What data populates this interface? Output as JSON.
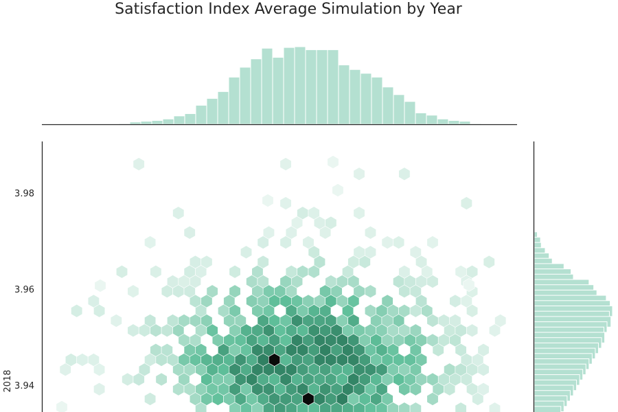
{
  "chart_data": {
    "type": "hexbin-joint",
    "title": "Satisfaction Index Average Simulation by Year",
    "xlabel": "",
    "ylabel": "2018",
    "ylim": [
      3.933,
      3.99
    ],
    "yticks": [
      3.94,
      3.96,
      3.98
    ],
    "colors": {
      "hist_fill": "#b4e0d1",
      "hist_edge": "#ffffff",
      "hex_light": "#eaf6f1",
      "hex_mid": "#5fbf9a",
      "hex_dark": "#2b7a5c",
      "hex_max": "#0a0a0a",
      "axis": "#262626"
    },
    "top_histogram": {
      "note_bins": "relative counts, left to right",
      "counts": [
        1,
        3,
        4,
        5,
        7,
        11,
        14,
        25,
        34,
        43,
        62,
        75,
        86,
        100,
        88,
        101,
        102,
        98,
        98,
        98,
        78,
        72,
        67,
        62,
        49,
        39,
        30,
        15,
        12,
        7,
        5,
        4,
        1
      ]
    },
    "right_histogram": {
      "y_bins": [
        3.9708,
        3.9697,
        3.9686,
        3.9675,
        3.9664,
        3.9653,
        3.9642,
        3.9631,
        3.962,
        3.9609,
        3.9598,
        3.9587,
        3.9576,
        3.9565,
        3.9554,
        3.9543,
        3.9532,
        3.9521,
        3.951,
        3.9499,
        3.9488,
        3.9477,
        3.9466,
        3.9455,
        3.9444,
        3.9433,
        3.9422,
        3.9411,
        3.94,
        3.9389,
        3.9378,
        3.9367,
        3.9356,
        3.9345
      ],
      "counts": [
        4,
        8,
        9,
        14,
        19,
        23,
        38,
        47,
        50,
        70,
        76,
        80,
        92,
        97,
        100,
        96,
        98,
        93,
        89,
        90,
        86,
        82,
        78,
        74,
        70,
        66,
        62,
        58,
        54,
        50,
        46,
        42,
        38,
        34
      ]
    },
    "hexbin": {
      "description": "density of simulated points; x is unitless simulation index, y in satisfaction index units",
      "peaks": [
        {
          "x": 0.49,
          "y": 3.9452,
          "weight": 1.0
        },
        {
          "x": 0.56,
          "y": 3.9375,
          "weight": 1.0
        },
        {
          "x": 0.47,
          "y": 3.946,
          "weight": 0.7
        },
        {
          "x": 0.6,
          "y": 3.947,
          "weight": 0.6
        },
        {
          "x": 0.63,
          "y": 3.938,
          "weight": 0.75
        }
      ],
      "center_x": 0.55,
      "spread_x": 0.17,
      "center_y": 3.944,
      "spread_y": 0.011
    }
  }
}
